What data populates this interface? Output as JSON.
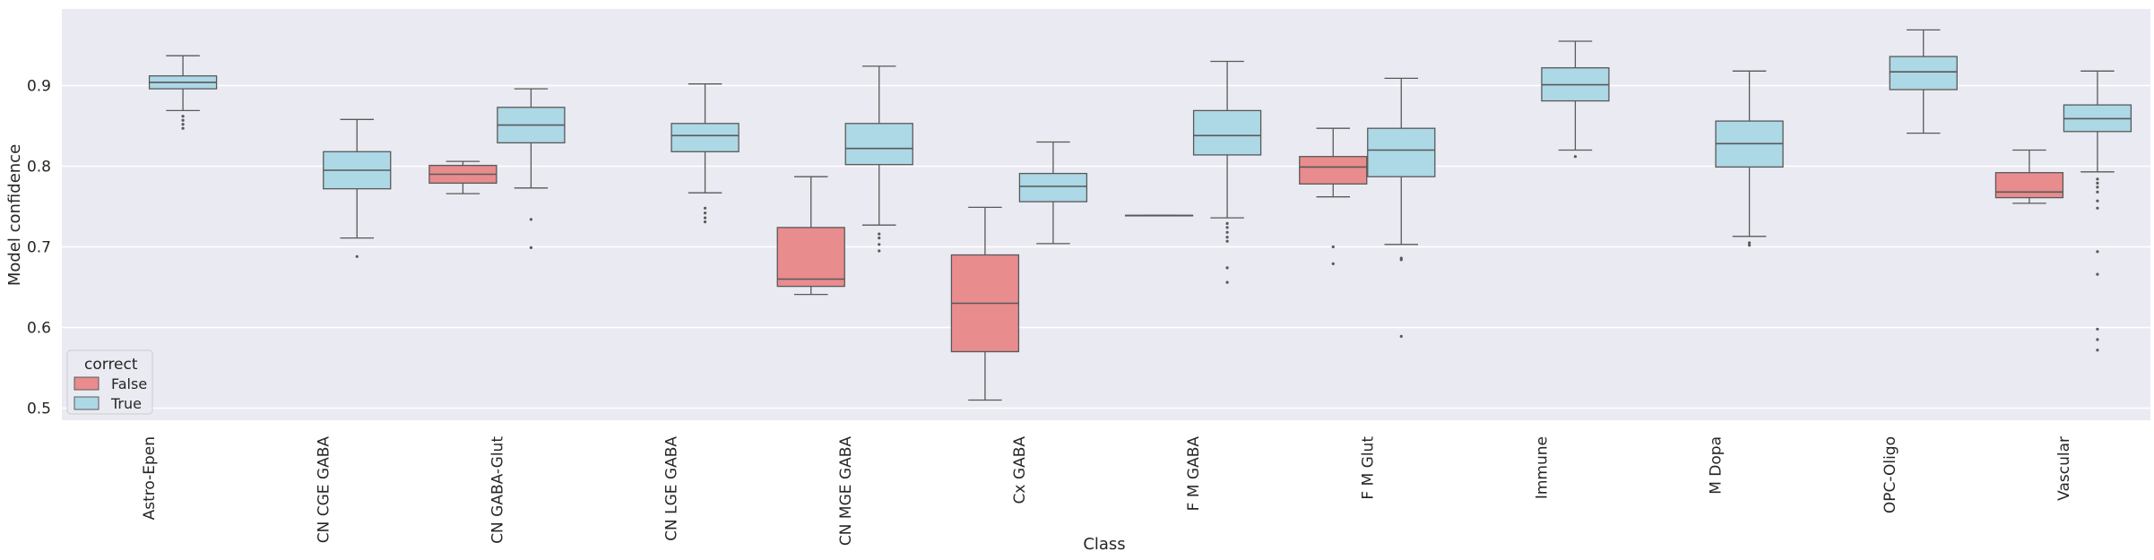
{
  "chart_data": {
    "type": "box",
    "xlabel": "Class",
    "ylabel": "Model confidence",
    "ylim": [
      0.485,
      0.995
    ],
    "yticks": [
      0.5,
      0.6,
      0.7,
      0.8,
      0.9
    ],
    "ytick_labels": [
      "0.5",
      "0.6",
      "0.7",
      "0.8",
      "0.9"
    ],
    "grid": true,
    "legend": {
      "title": "correct",
      "position": "bottom-left",
      "entries": [
        {
          "label": "False",
          "color": "#e88c8e"
        },
        {
          "label": "True",
          "color": "#add8e6"
        }
      ]
    },
    "colors": {
      "False": "#e88c8e",
      "True": "#add8e6",
      "background": "#eaeaf2",
      "grid": "#ffffff",
      "line": "#595959"
    },
    "categories": [
      "Astro-Epen",
      "CN CGE GABA",
      "CN GABA-Glut",
      "CN LGE GABA",
      "CN MGE GABA",
      "Cx GABA",
      "F M GABA",
      "F M Glut",
      "Immune",
      "M Dopa",
      "OPC-Oligo",
      "Vascular"
    ],
    "boxes": [
      {
        "category": "Astro-Epen",
        "group": "True",
        "whisker_low": 0.869,
        "q1": 0.896,
        "median": 0.904,
        "q3": 0.912,
        "whisker_high": 0.937,
        "outliers": [
          0.862,
          0.857,
          0.852,
          0.847
        ]
      },
      {
        "category": "CN CGE GABA",
        "group": "True",
        "whisker_low": 0.711,
        "q1": 0.772,
        "median": 0.795,
        "q3": 0.818,
        "whisker_high": 0.858,
        "outliers": [
          0.688
        ]
      },
      {
        "category": "CN GABA-Glut",
        "group": "False",
        "whisker_low": 0.766,
        "q1": 0.779,
        "median": 0.79,
        "q3": 0.801,
        "whisker_high": 0.806,
        "outliers": []
      },
      {
        "category": "CN GABA-Glut",
        "group": "True",
        "whisker_low": 0.773,
        "q1": 0.829,
        "median": 0.851,
        "q3": 0.873,
        "whisker_high": 0.896,
        "outliers": [
          0.734,
          0.699
        ]
      },
      {
        "category": "CN LGE GABA",
        "group": "True",
        "whisker_low": 0.767,
        "q1": 0.818,
        "median": 0.838,
        "q3": 0.853,
        "whisker_high": 0.902,
        "outliers": [
          0.748,
          0.742,
          0.736,
          0.731
        ]
      },
      {
        "category": "CN MGE GABA",
        "group": "False",
        "whisker_low": 0.641,
        "q1": 0.651,
        "median": 0.66,
        "q3": 0.724,
        "whisker_high": 0.787,
        "outliers": []
      },
      {
        "category": "CN MGE GABA",
        "group": "True",
        "whisker_low": 0.727,
        "q1": 0.802,
        "median": 0.822,
        "q3": 0.853,
        "whisker_high": 0.924,
        "outliers": [
          0.716,
          0.711,
          0.703,
          0.695
        ]
      },
      {
        "category": "Cx GABA",
        "group": "False",
        "whisker_low": 0.51,
        "q1": 0.57,
        "median": 0.63,
        "q3": 0.69,
        "whisker_high": 0.749,
        "outliers": []
      },
      {
        "category": "Cx GABA",
        "group": "True",
        "whisker_low": 0.704,
        "q1": 0.756,
        "median": 0.775,
        "q3": 0.791,
        "whisker_high": 0.83,
        "outliers": []
      },
      {
        "category": "F M GABA",
        "group": "False",
        "whisker_low": 0.739,
        "q1": 0.739,
        "median": 0.739,
        "q3": 0.739,
        "whisker_high": 0.739,
        "outliers": []
      },
      {
        "category": "F M GABA",
        "group": "True",
        "whisker_low": 0.736,
        "q1": 0.814,
        "median": 0.838,
        "q3": 0.869,
        "whisker_high": 0.93,
        "outliers": [
          0.729,
          0.724,
          0.718,
          0.712,
          0.707,
          0.674,
          0.656
        ]
      },
      {
        "category": "F M Glut",
        "group": "False",
        "whisker_low": 0.762,
        "q1": 0.778,
        "median": 0.799,
        "q3": 0.812,
        "whisker_high": 0.847,
        "outliers": [
          0.7,
          0.679
        ]
      },
      {
        "category": "F M Glut",
        "group": "True",
        "whisker_low": 0.703,
        "q1": 0.787,
        "median": 0.82,
        "q3": 0.847,
        "whisker_high": 0.909,
        "outliers": [
          0.686,
          0.684,
          0.589
        ]
      },
      {
        "category": "Immune",
        "group": "True",
        "whisker_low": 0.82,
        "q1": 0.881,
        "median": 0.901,
        "q3": 0.922,
        "whisker_high": 0.955,
        "outliers": [
          0.812
        ]
      },
      {
        "category": "M Dopa",
        "group": "True",
        "whisker_low": 0.713,
        "q1": 0.799,
        "median": 0.828,
        "q3": 0.856,
        "whisker_high": 0.918,
        "outliers": [
          0.705,
          0.702
        ]
      },
      {
        "category": "OPC-Oligo",
        "group": "True",
        "whisker_low": 0.841,
        "q1": 0.895,
        "median": 0.917,
        "q3": 0.936,
        "whisker_high": 0.969,
        "outliers": []
      },
      {
        "category": "Vascular",
        "group": "False",
        "whisker_low": 0.754,
        "q1": 0.761,
        "median": 0.768,
        "q3": 0.792,
        "whisker_high": 0.82,
        "outliers": []
      },
      {
        "category": "Vascular",
        "group": "True",
        "whisker_low": 0.793,
        "q1": 0.843,
        "median": 0.859,
        "q3": 0.876,
        "whisker_high": 0.918,
        "outliers": [
          0.784,
          0.779,
          0.774,
          0.768,
          0.757,
          0.748,
          0.694,
          0.666,
          0.598,
          0.585,
          0.572
        ]
      }
    ]
  }
}
